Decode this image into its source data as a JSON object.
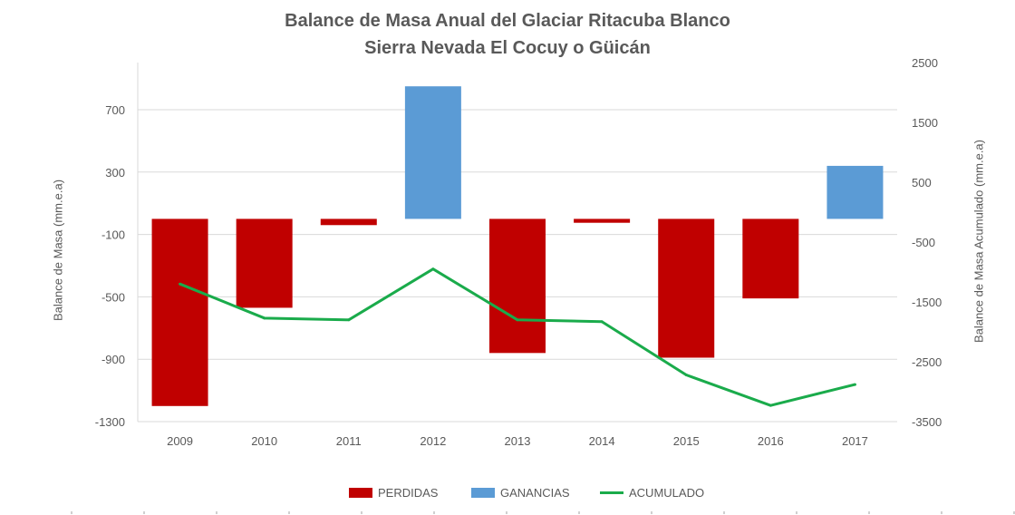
{
  "chart_data": {
    "type": "bar",
    "title": "Balance de Masa Anual del Glaciar Ritacuba Blanco",
    "subtitle": "Sierra Nevada El Cocuy o Güicán",
    "ylabel": "Balance de Masa (mm.e.a)",
    "ylabel_right": "Balance de Masa Acumulado (mm.e.a)",
    "categories": [
      "2009",
      "2010",
      "2011",
      "2012",
      "2013",
      "2014",
      "2015",
      "2016",
      "2017"
    ],
    "ylim": [
      -1300,
      1000
    ],
    "yticks": [
      700,
      300,
      -100,
      -500,
      -900,
      -1300
    ],
    "ylim_right": [
      -3500,
      2500
    ],
    "yticks_right": [
      2500,
      1500,
      500,
      -500,
      -1500,
      -2500,
      -3500
    ],
    "series": [
      {
        "name": "PERDIDAS",
        "type": "bar",
        "color": "#C00000",
        "values": [
          -1200,
          -570,
          -40,
          null,
          -860,
          -25,
          -890,
          -510,
          null
        ]
      },
      {
        "name": "GANANCIAS",
        "type": "bar",
        "color": "#5B9BD5",
        "values": [
          null,
          null,
          null,
          850,
          null,
          null,
          null,
          null,
          340
        ]
      },
      {
        "name": "ACUMULADO",
        "type": "line",
        "axis": "right",
        "color": "#1AAB4B",
        "values": [
          -1200,
          -1770,
          -1800,
          -950,
          -1800,
          -1830,
          -2720,
          -3230,
          -2880
        ]
      }
    ]
  }
}
